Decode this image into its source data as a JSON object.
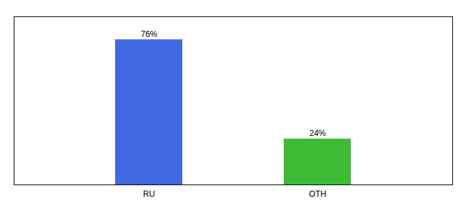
{
  "chart_data": {
    "type": "bar",
    "categories": [
      "RU",
      "OTH"
    ],
    "values": [
      76,
      24
    ],
    "value_labels": [
      "76%",
      "24%"
    ],
    "colors": [
      "#4169e1",
      "#3dbb35"
    ],
    "ylim": [
      0,
      88
    ],
    "data_labels": true,
    "tick_labels": "x"
  }
}
